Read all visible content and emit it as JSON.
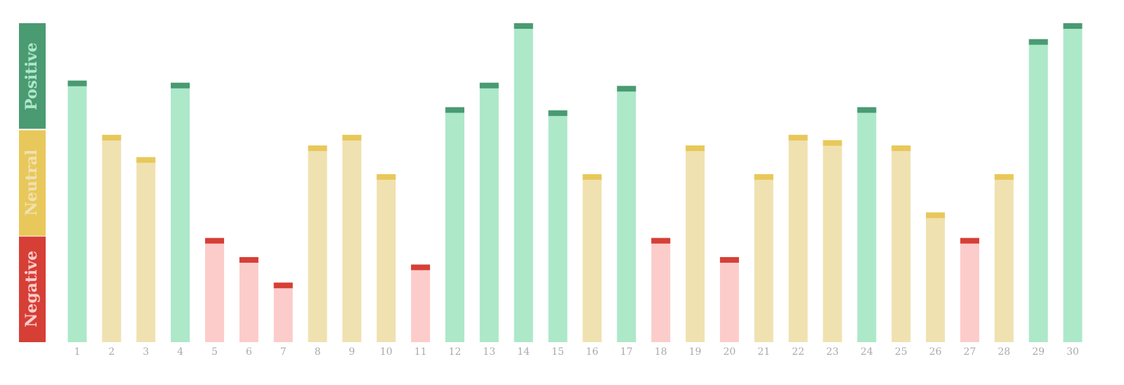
{
  "chart_data": {
    "type": "bar",
    "categories": [
      "1",
      "2",
      "3",
      "4",
      "5",
      "6",
      "7",
      "8",
      "9",
      "10",
      "11",
      "12",
      "13",
      "14",
      "15",
      "16",
      "17",
      "18",
      "19",
      "20",
      "21",
      "22",
      "23",
      "24",
      "25",
      "26",
      "27",
      "28",
      "29",
      "30"
    ],
    "values": [
      2.46,
      1.95,
      1.74,
      2.44,
      0.98,
      0.8,
      0.56,
      1.85,
      1.95,
      1.58,
      0.73,
      2.21,
      2.44,
      3.0,
      2.18,
      1.58,
      2.41,
      0.98,
      1.85,
      0.8,
      1.58,
      1.95,
      1.9,
      2.21,
      1.85,
      1.22,
      0.98,
      1.58,
      2.85,
      3.0
    ],
    "ylim": [
      0,
      3
    ],
    "bands": [
      {
        "name": "Negative",
        "color": "#d63f36",
        "fill": "#fccccb",
        "range": [
          0,
          1
        ]
      },
      {
        "name": "Neutral",
        "color": "#e8c85a",
        "fill": "#f0e1b0",
        "range": [
          1,
          2
        ]
      },
      {
        "name": "Positive",
        "color": "#4a9a72",
        "fill": "#ade8c9",
        "range": [
          2,
          3
        ]
      }
    ]
  }
}
